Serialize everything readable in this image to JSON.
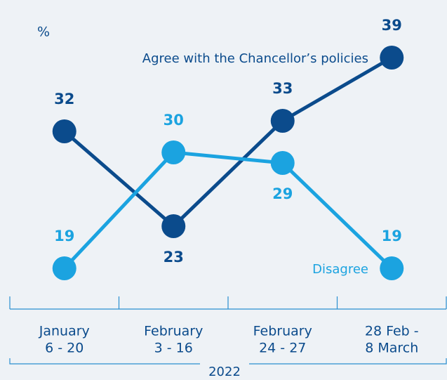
{
  "chart_data": {
    "type": "line",
    "unit_label": "%",
    "categories": [
      [
        "January",
        "6 - 20"
      ],
      [
        "February",
        "3 - 16"
      ],
      [
        "February",
        "24 - 27"
      ],
      [
        "28 Feb -",
        "8 March"
      ]
    ],
    "group_label": "2022",
    "series": [
      {
        "name": "Agree with the Chancellor’s policies",
        "color": "#0b4b8c",
        "values": [
          32,
          23,
          33,
          39
        ]
      },
      {
        "name": "Disagree",
        "color": "#1ba3e0",
        "values": [
          19,
          30,
          29,
          19
        ]
      }
    ],
    "ylim": [
      19,
      39
    ]
  }
}
